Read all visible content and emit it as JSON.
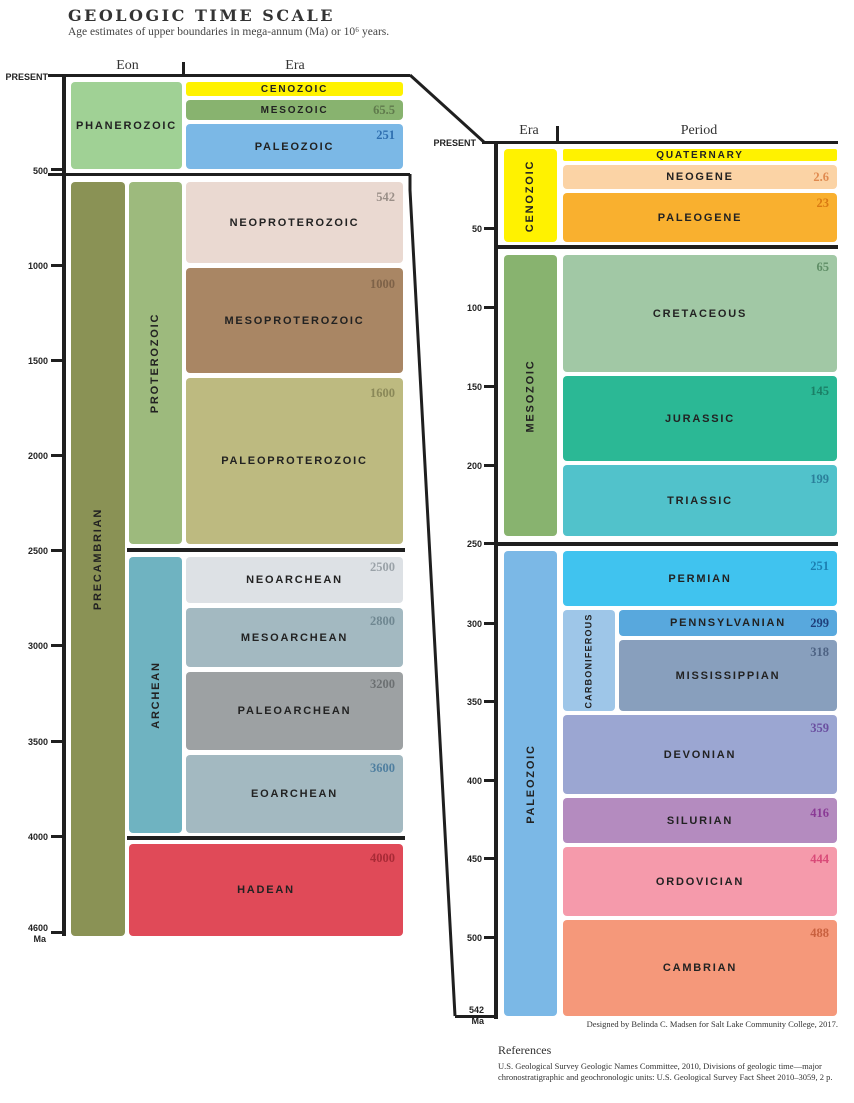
{
  "header": {
    "title": "GEOLOGIC TIME SCALE",
    "subtitle": "Age estimates of upper boundaries in mega-annum (Ma) or 10⁶ years."
  },
  "left": {
    "col_eon": "Eon",
    "col_era": "Era",
    "ticks": [
      "PRESENT",
      "500",
      "1000",
      "1500",
      "2000",
      "2500",
      "3000",
      "3500",
      "4000",
      "4600"
    ],
    "unit": "Ma",
    "eons": [
      {
        "name": "PHANEROZOIC",
        "color": "#a0d195"
      },
      {
        "name": "PRECAMBRIAN",
        "color": "#8a9255"
      }
    ],
    "eras": [
      {
        "name": "CENOZOIC",
        "age": "",
        "color": "#fff200"
      },
      {
        "name": "MESOZOIC",
        "age": "65.5",
        "color": "#88b36f"
      },
      {
        "name": "PALEOZOIC",
        "age": "251",
        "color": "#7bb8e6"
      },
      {
        "name": "PROTEROZOIC",
        "age": "",
        "color": "#9dba7d"
      },
      {
        "name": "NEOPROTEROZOIC",
        "age": "542",
        "color": "#ead9d1"
      },
      {
        "name": "MESOPROTEROZOIC",
        "age": "1000",
        "color": "#a98664"
      },
      {
        "name": "PALEOPROTEROZOIC",
        "age": "1600",
        "color": "#bdba80"
      },
      {
        "name": "ARCHEAN",
        "age": "",
        "color": "#6fb3c1"
      },
      {
        "name": "NEOARCHEAN",
        "age": "2500",
        "color": "#dde1e5"
      },
      {
        "name": "MESOARCHEAN",
        "age": "2800",
        "color": "#a3b9c1"
      },
      {
        "name": "PALEOARCHEAN",
        "age": "3200",
        "color": "#9da1a3"
      },
      {
        "name": "EOARCHEAN",
        "age": "3600",
        "color": "#a3b9c1"
      },
      {
        "name": "HADEAN",
        "age": "4000",
        "color": "#e04a58"
      }
    ]
  },
  "right": {
    "col_era": "Era",
    "col_period": "Period",
    "ticks": [
      "PRESENT",
      "50",
      "100",
      "150",
      "200",
      "250",
      "300",
      "350",
      "400",
      "450",
      "500",
      "542"
    ],
    "unit": "Ma",
    "eras": [
      {
        "name": "CENOZOIC",
        "color": "#fff200"
      },
      {
        "name": "MESOZOIC",
        "color": "#88b36f"
      },
      {
        "name": "PALEOZOIC",
        "color": "#7bb8e6"
      },
      {
        "name": "CARBONIFEROUS",
        "color": "#9ec6e8"
      }
    ],
    "periods": [
      {
        "name": "QUATERNARY",
        "age": "",
        "color": "#fff200"
      },
      {
        "name": "NEOGENE",
        "age": "2.6",
        "color": "#fbd3a5"
      },
      {
        "name": "PALEOGENE",
        "age": "23",
        "color": "#f9b02f"
      },
      {
        "name": "CRETACEOUS",
        "age": "65",
        "color": "#a1c8a5"
      },
      {
        "name": "JURASSIC",
        "age": "145",
        "color": "#2bb895"
      },
      {
        "name": "TRIASSIC",
        "age": "199",
        "color": "#51c2cb"
      },
      {
        "name": "PERMIAN",
        "age": "251",
        "color": "#40c3ef"
      },
      {
        "name": "PENNSYLVANIAN",
        "age": "299",
        "color": "#58a8dd"
      },
      {
        "name": "MISSISSIPPIAN",
        "age": "318",
        "color": "#889fbd"
      },
      {
        "name": "DEVONIAN",
        "age": "359",
        "color": "#9ba6d2"
      },
      {
        "name": "SILURIAN",
        "age": "416",
        "color": "#b48bbf"
      },
      {
        "name": "ORDOVICIAN",
        "age": "444",
        "color": "#f59aab"
      },
      {
        "name": "CAMBRIAN",
        "age": "488",
        "color": "#f5987a"
      }
    ]
  },
  "credit": "Designed by Belinda C. Madsen for Salt Lake Community College, 2017.",
  "references": {
    "heading": "References",
    "text": "U.S. Geological Survey Geologic Names Committee, 2010, Divisions of geologic time—major chronostratigraphic and geochronologic units: U.S. Geological Survey Fact Sheet 2010–3059, 2 p."
  }
}
